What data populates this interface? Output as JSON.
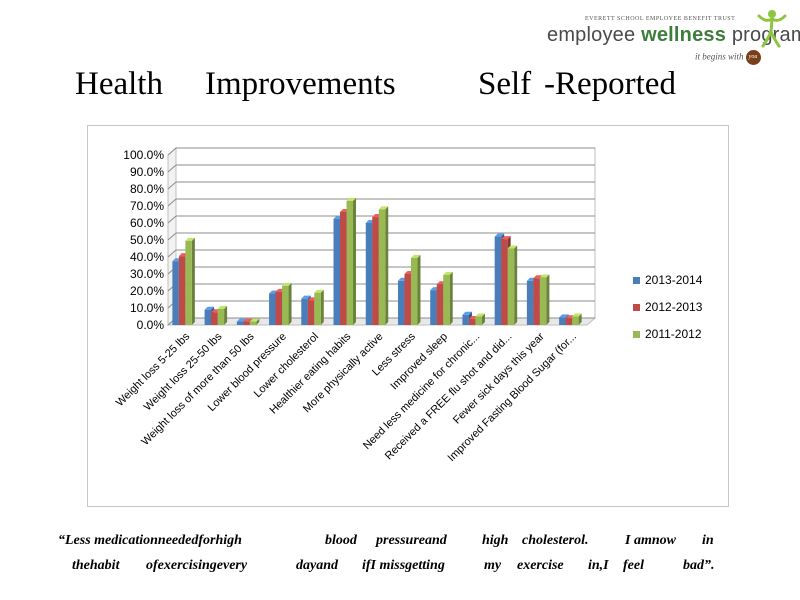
{
  "logo": {
    "org": "EVERETT SCHOOL EMPLOYEE BENEFIT TRUST",
    "program_prefix": "employee ",
    "program_bold": "wellness",
    "program_suffix": " program",
    "tagline": "it begins with",
    "tagline_badge": "you",
    "figure_icon": "wellness-figure-icon",
    "colors": {
      "green": "#3f7d3c",
      "grey": "#4a4a4a",
      "badge": "#7a3e1a"
    }
  },
  "title": {
    "word1": "Health",
    "word2": "Improvements",
    "word3": "Self",
    "word4": "-Reported"
  },
  "chart_data": {
    "type": "bar",
    "categories": [
      "Weight loss 5-25 lbs",
      "Weight loss 25-50 lbs",
      "Weight loss of more than 50 lbs",
      "Lower blood pressure",
      "Lower cholesterol",
      "Healthier eating habits",
      "More physically active",
      "Less stress",
      "Improved sleep",
      "Need less medicine for chronic...",
      "Received a FREE flu shot and did...",
      "Fewer sick days this year",
      "Improved Fasting Blood Sugar (for..."
    ],
    "series": [
      {
        "name": "2013-2014",
        "color": "#4a7ebb",
        "values": [
          37.5,
          9.0,
          2.0,
          18.5,
          15.5,
          62.5,
          60.0,
          26.0,
          20.5,
          6.0,
          52.0,
          26.0,
          4.5
        ]
      },
      {
        "name": "2012-2013",
        "color": "#be4b48",
        "values": [
          40.5,
          7.5,
          2.0,
          19.5,
          14.5,
          66.5,
          63.5,
          30.0,
          24.0,
          3.5,
          50.5,
          27.5,
          4.0
        ]
      },
      {
        "name": "2011-2012",
        "color": "#98b954",
        "values": [
          49.5,
          9.5,
          2.0,
          23.0,
          19.0,
          73.0,
          68.0,
          39.5,
          29.5,
          5.0,
          45.0,
          28.0,
          5.0
        ]
      }
    ],
    "y_ticks": [
      "0.0%",
      "10.0%",
      "20.0%",
      "30.0%",
      "40.0%",
      "50.0%",
      "60.0%",
      "70.0%",
      "80.0%",
      "90.0%",
      "100.0%"
    ],
    "ylim": [
      0,
      100
    ],
    "grid": true,
    "legend_position": "right"
  },
  "quote": {
    "line1": [
      "“Less medicationneededforhigh",
      "blood",
      "pressureand",
      "high",
      "cholesterol.",
      "I amnow",
      "in"
    ],
    "line2": [
      "thehabit",
      "ofexercisingevery",
      "dayand",
      "ifI missgetting",
      "my",
      "exercise",
      "in,I",
      "feel",
      "bad”."
    ]
  }
}
